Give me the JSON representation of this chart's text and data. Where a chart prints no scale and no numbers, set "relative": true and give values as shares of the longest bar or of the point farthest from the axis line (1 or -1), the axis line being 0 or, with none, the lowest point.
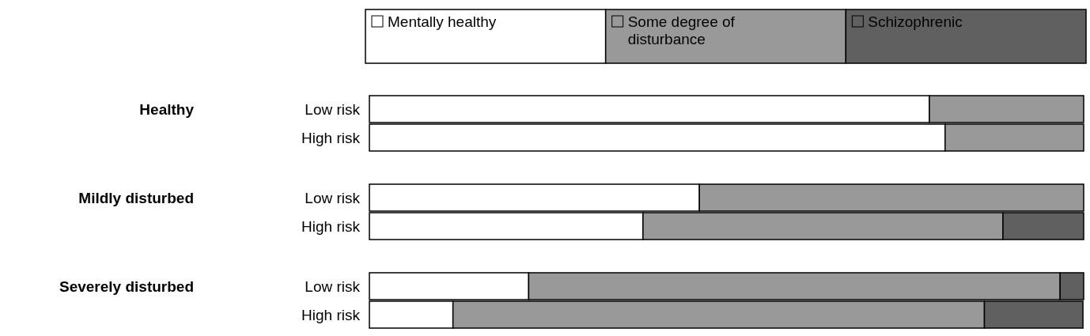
{
  "chart_data": {
    "type": "bar",
    "orientation": "horizontal",
    "stacked": true,
    "relative": true,
    "legend": "top",
    "categories": [
      "Low risk",
      "High risk",
      "Low risk",
      "High risk",
      "Low risk",
      "High risk"
    ],
    "annotations": [
      "Healthy",
      "Mildly disturbed",
      "Severely disturbed"
    ],
    "series": [
      {
        "name": "Mentally healthy",
        "color": "#ffffff",
        "values": [
          0.784,
          0.806,
          0.462,
          0.383,
          0.223,
          0.117
        ]
      },
      {
        "name": "Some degree of disturbance",
        "color": "#999999",
        "values": [
          0.216,
          0.194,
          0.538,
          0.504,
          0.744,
          0.744
        ]
      },
      {
        "name": "Schizophrenic",
        "color": "#606060",
        "values": [
          0,
          0,
          0,
          0.113,
          0.033,
          0.138
        ]
      }
    ]
  }
}
